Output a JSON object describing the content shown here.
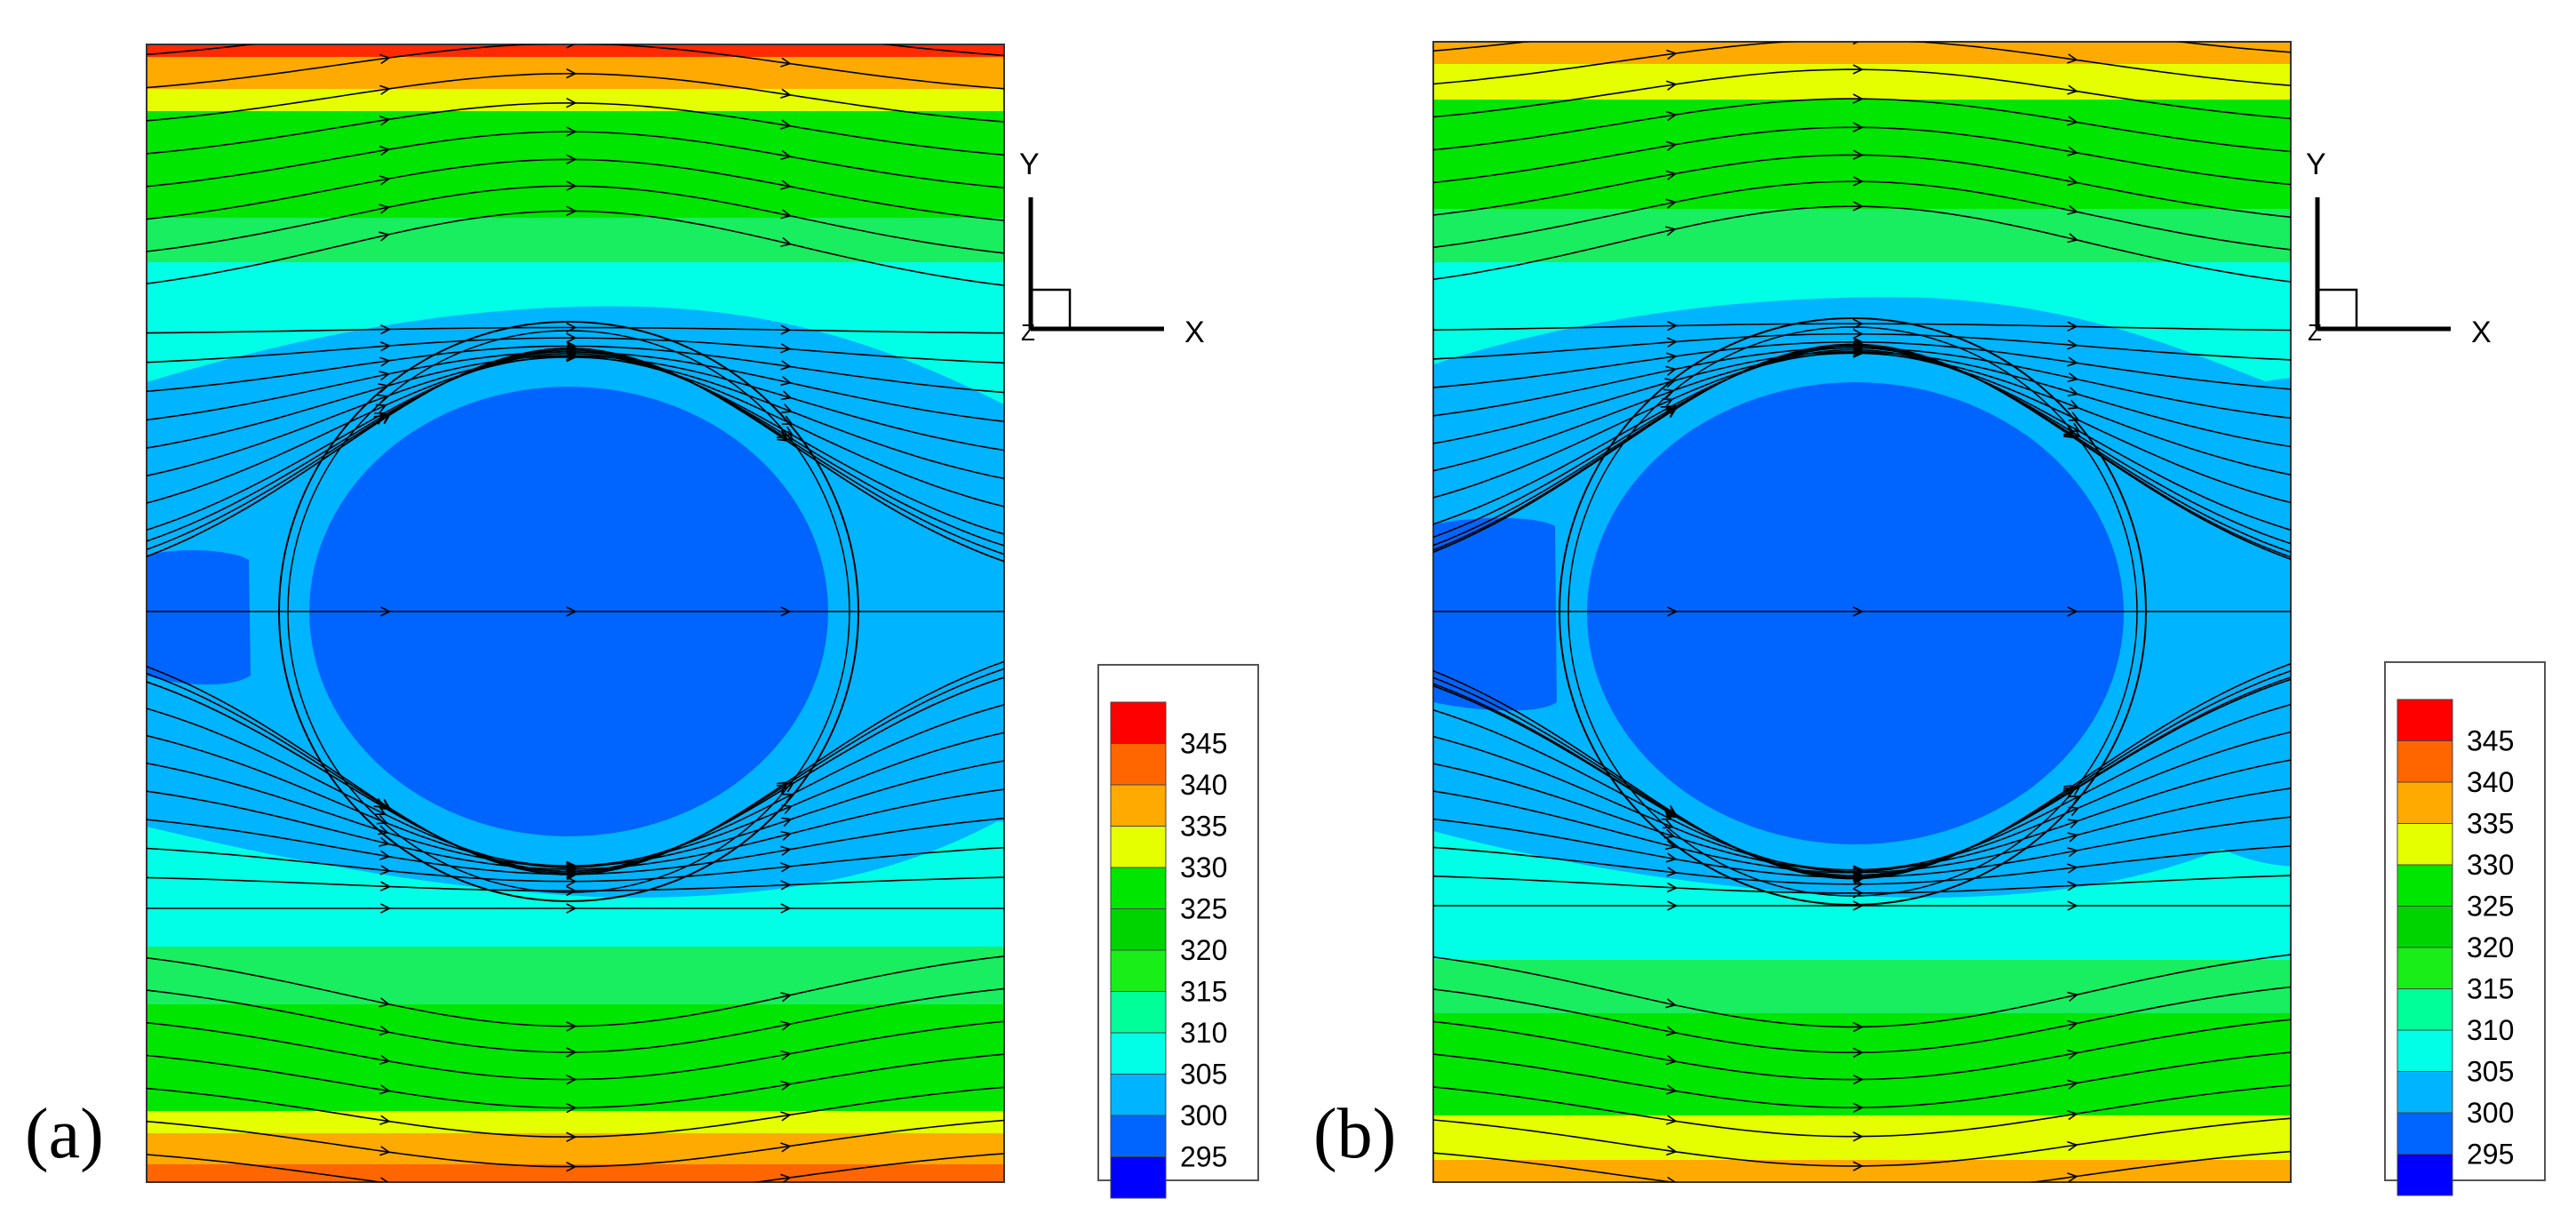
{
  "figure": {
    "description_free": true
  },
  "chart_data": [
    {
      "type": "heatmap",
      "panel_label": "(a)",
      "axis_triad": {
        "x_label": "X",
        "y_label": "Y",
        "z_label": "Z"
      },
      "colorbar": {
        "levels": [
          345,
          340,
          335,
          330,
          325,
          320,
          315,
          310,
          305,
          300,
          295
        ],
        "label_text": [
          "345",
          "340",
          "335",
          "330",
          "325",
          "320",
          "315",
          "310",
          "305",
          "300",
          "295"
        ],
        "colors": [
          "#ff0000",
          "#ff6600",
          "#ffaa00",
          "#e6ff00",
          "#00e600",
          "#00d400",
          "#19ee19",
          "#00ff99",
          "#00ffe6",
          "#00b4ff",
          "#0064ff",
          "#0000ff"
        ]
      },
      "field": {
        "variable": "temperature contours with streamlines",
        "core_level": 300,
        "wall_levels": [
          340,
          345
        ],
        "left_inlet_cold_pocket": true
      }
    },
    {
      "type": "heatmap",
      "panel_label": "(b)",
      "axis_triad": {
        "x_label": "X",
        "y_label": "Y",
        "z_label": "Z"
      },
      "colorbar": {
        "levels": [
          345,
          340,
          335,
          330,
          325,
          320,
          315,
          310,
          305,
          300,
          295
        ],
        "label_text": [
          "345",
          "340",
          "335",
          "330",
          "325",
          "320",
          "315",
          "310",
          "305",
          "300",
          "295"
        ],
        "colors": [
          "#ff0000",
          "#ff6600",
          "#ffaa00",
          "#e6ff00",
          "#00e600",
          "#00d400",
          "#19ee19",
          "#00ff99",
          "#00ffe6",
          "#00b4ff",
          "#0064ff",
          "#0000ff"
        ]
      },
      "field": {
        "variable": "temperature contours with streamlines",
        "core_level": 300,
        "wall_levels": [
          335,
          340
        ],
        "left_inlet_cold_pocket": true
      }
    }
  ]
}
